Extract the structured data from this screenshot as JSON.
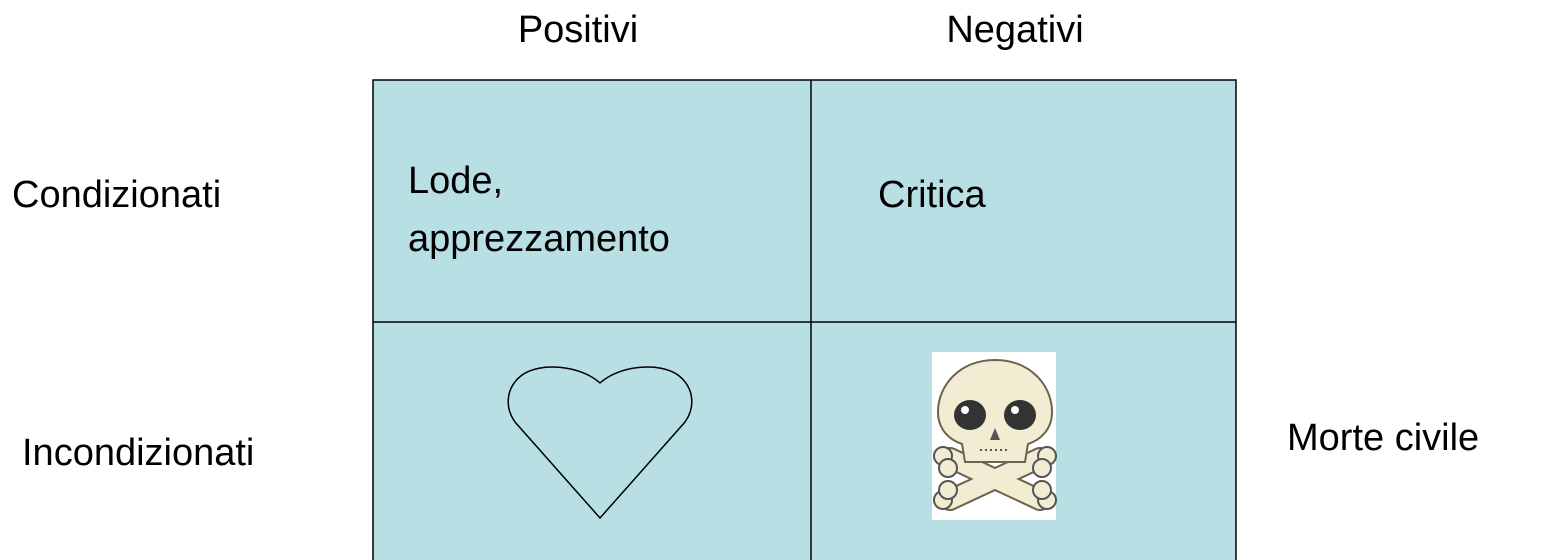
{
  "table": {
    "column_headers": [
      "Positivi",
      "Negativi"
    ],
    "row_headers": [
      "Condizionati",
      "Incondizionati"
    ],
    "cells": [
      [
        [
          "Lode,",
          "apprezzamento"
        ],
        [
          "Critica"
        ]
      ]
    ]
  },
  "side_label": "Morte civile"
}
